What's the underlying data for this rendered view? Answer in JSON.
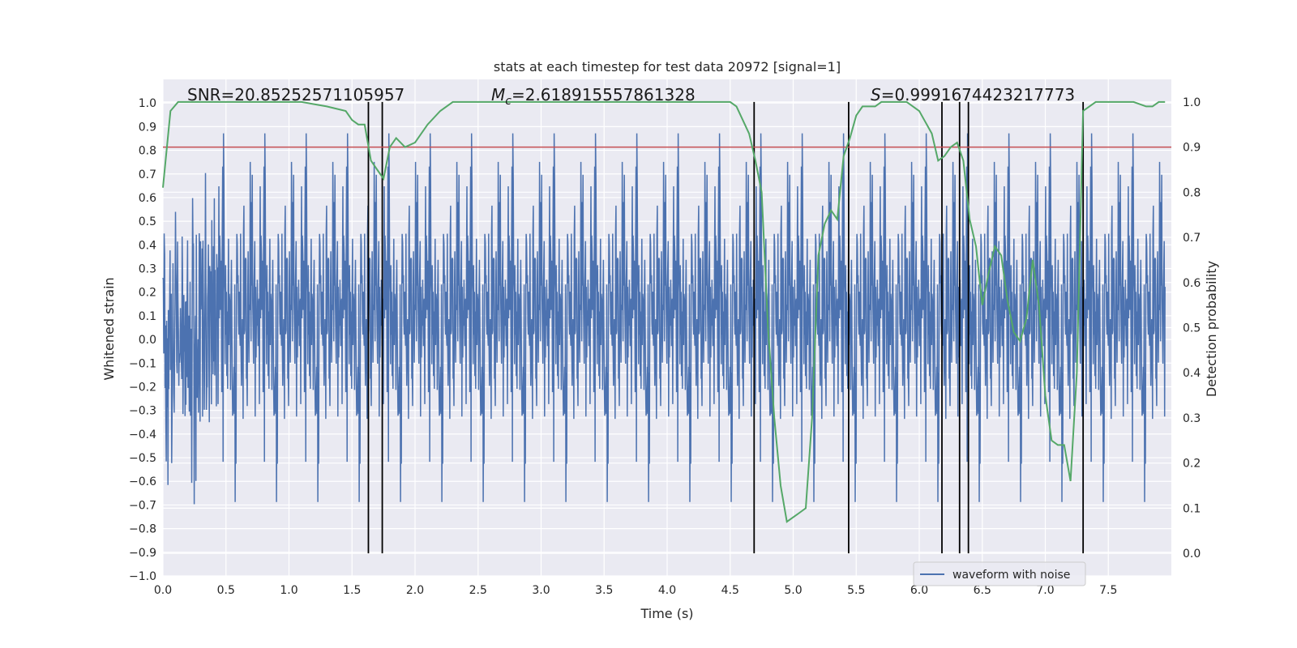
{
  "chart_data": {
    "type": "line",
    "title": "stats at each timestep for test data 20972 [signal=1]",
    "xlabel": "Time (s)",
    "ylabel": "Whitened strain",
    "y2label": "Detection probability",
    "xlim": [
      0.0,
      8.0
    ],
    "ylim": [
      -1.0,
      1.1
    ],
    "y2lim": [
      -0.05,
      1.05
    ],
    "x_ticks": [
      0.0,
      0.5,
      1.0,
      1.5,
      2.0,
      2.5,
      3.0,
      3.5,
      4.0,
      4.5,
      5.0,
      5.5,
      6.0,
      6.5,
      7.0,
      7.5
    ],
    "x_tick_labels": [
      "0.0",
      "0.5",
      "1.0",
      "1.5",
      "2.0",
      "2.5",
      "3.0",
      "3.5",
      "4.0",
      "4.5",
      "5.0",
      "5.5",
      "6.0",
      "6.5",
      "7.0",
      "7.5"
    ],
    "y_ticks": [
      -1.0,
      -0.9,
      -0.8,
      -0.7,
      -0.6,
      -0.5,
      -0.4,
      -0.3,
      -0.2,
      -0.1,
      0.0,
      0.1,
      0.2,
      0.3,
      0.4,
      0.5,
      0.6,
      0.7,
      0.8,
      0.9,
      1.0
    ],
    "y_tick_labels": [
      "−1.0",
      "−0.9",
      "−0.8",
      "−0.7",
      "−0.6",
      "−0.5",
      "−0.4",
      "−0.3",
      "−0.2",
      "−0.1",
      "0.0",
      "0.1",
      "0.2",
      "0.3",
      "0.4",
      "0.5",
      "0.6",
      "0.7",
      "0.8",
      "0.9",
      "1.0"
    ],
    "y2_ticks": [
      0.0,
      0.1,
      0.2,
      0.3,
      0.4,
      0.5,
      0.6,
      0.7,
      0.8,
      0.9,
      1.0
    ],
    "y2_tick_labels": [
      "0.0",
      "0.1",
      "0.2",
      "0.3",
      "0.4",
      "0.5",
      "0.6",
      "0.7",
      "0.8",
      "0.9",
      "1.0"
    ],
    "grid": true,
    "legend_position": "lower-right",
    "annotations": {
      "snr": "SNR=20.85252571105957",
      "mc_symbol": "M",
      "mc_sub": "c",
      "mc_value": "=2.618915557861328",
      "s_symbol": "S",
      "s_value": "=0.9991674423217773"
    },
    "series": [
      {
        "name": "waveform with noise",
        "kind": "noise_band",
        "color": "#4c72b0",
        "core_range": [
          -0.35,
          0.45
        ],
        "spike_range": [
          -0.91,
          0.98
        ]
      },
      {
        "kind": "probability",
        "axis": "right",
        "color": "#55a868",
        "x": [
          0.0,
          0.06,
          0.12,
          0.2,
          0.3,
          0.5,
          0.7,
          0.9,
          1.1,
          1.3,
          1.45,
          1.5,
          1.55,
          1.6,
          1.65,
          1.7,
          1.75,
          1.8,
          1.85,
          1.92,
          2.0,
          2.1,
          2.2,
          2.3,
          2.5,
          3.0,
          3.5,
          4.0,
          4.3,
          4.5,
          4.55,
          4.6,
          4.65,
          4.7,
          4.75,
          4.8,
          4.85,
          4.9,
          4.95,
          5.0,
          5.05,
          5.1,
          5.15,
          5.2,
          5.25,
          5.3,
          5.35,
          5.4,
          5.45,
          5.5,
          5.55,
          5.6,
          5.65,
          5.7,
          5.8,
          5.9,
          6.0,
          6.1,
          6.15,
          6.2,
          6.25,
          6.3,
          6.35,
          6.4,
          6.45,
          6.5,
          6.55,
          6.6,
          6.65,
          6.7,
          6.75,
          6.8,
          6.85,
          6.9,
          6.95,
          7.0,
          7.05,
          7.1,
          7.15,
          7.2,
          7.25,
          7.3,
          7.35,
          7.4,
          7.45,
          7.5,
          7.6,
          7.7,
          7.8,
          7.85,
          7.9,
          7.95
        ],
        "y": [
          0.81,
          0.98,
          1.0,
          1.0,
          1.0,
          1.0,
          1.0,
          1.0,
          1.0,
          0.99,
          0.98,
          0.96,
          0.95,
          0.95,
          0.87,
          0.85,
          0.83,
          0.9,
          0.92,
          0.9,
          0.91,
          0.95,
          0.98,
          1.0,
          1.0,
          1.0,
          1.0,
          1.0,
          1.0,
          1.0,
          0.99,
          0.96,
          0.93,
          0.87,
          0.8,
          0.5,
          0.3,
          0.15,
          0.07,
          0.08,
          0.09,
          0.1,
          0.3,
          0.66,
          0.73,
          0.76,
          0.74,
          0.88,
          0.92,
          0.97,
          0.99,
          0.99,
          0.99,
          1.0,
          1.0,
          1.0,
          0.98,
          0.93,
          0.87,
          0.88,
          0.9,
          0.91,
          0.87,
          0.74,
          0.68,
          0.55,
          0.62,
          0.68,
          0.66,
          0.56,
          0.49,
          0.47,
          0.52,
          0.65,
          0.55,
          0.35,
          0.25,
          0.24,
          0.24,
          0.16,
          0.4,
          0.98,
          0.99,
          1.0,
          1.0,
          1.0,
          1.0,
          1.0,
          0.99,
          0.99,
          1.0,
          1.0
        ]
      },
      {
        "kind": "threshold",
        "axis": "right",
        "color": "#c44e52",
        "value": 0.9
      },
      {
        "kind": "vertical_markers",
        "color": "#000000",
        "x": [
          1.63,
          1.74,
          4.69,
          5.44,
          6.18,
          6.32,
          6.39,
          7.3
        ]
      }
    ]
  }
}
